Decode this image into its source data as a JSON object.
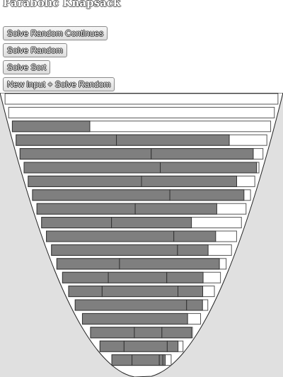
{
  "title": "Parabolic Knapsack",
  "buttons": [
    {
      "id": "solve_random_continues",
      "label": "Solve Random Continues"
    },
    {
      "id": "solve_random",
      "label": "Solve Random"
    },
    {
      "id": "solve_sort",
      "label": "Solve Sort"
    },
    {
      "id": "new_input_solve_random",
      "label": "New Input + Solve Random"
    }
  ],
  "colors": {
    "background": "#e0e0e0",
    "knapsack_fill": "#ffffff",
    "item_fill": "#7f7f7f",
    "row_border": "#555555"
  },
  "rows": [
    {
      "items": [],
      "fill": 0
    },
    {
      "items": [],
      "fill": 0
    },
    {
      "items": [
        0.3
      ],
      "fill": 0.3
    },
    {
      "items": [
        0.4,
        0.45
      ],
      "fill": 0.85
    },
    {
      "items": [
        0.54,
        0.42
      ],
      "fill": 0.96
    },
    {
      "items": [
        0.58,
        0.41
      ],
      "fill": 0.99
    },
    {
      "items": [
        0.5,
        0.42
      ],
      "fill": 0.92
    },
    {
      "items": [
        0.63,
        0.34
      ],
      "fill": 0.97
    },
    {
      "items": [
        0.47,
        0.39
      ],
      "fill": 0.86
    },
    {
      "items": [
        0.35,
        0.4
      ],
      "fill": 0.75
    },
    {
      "items": [
        0.67,
        0.22
      ],
      "fill": 0.89
    },
    {
      "items": [
        0.7,
        0.17
      ],
      "fill": 0.87
    },
    {
      "items": [
        0.37,
        0.59
      ],
      "fill": 0.96
    },
    {
      "items": [
        0.29,
        0.37,
        0.23
      ],
      "fill": 0.89
    },
    {
      "items": [
        0.23,
        0.52,
        0.17
      ],
      "fill": 0.92
    },
    {
      "items": [
        0.84,
        0.12
      ],
      "fill": 0.96
    },
    {
      "items": [
        0.89
      ],
      "fill": 0.89
    },
    {
      "items": [
        0.43,
        0.27,
        0.29
      ],
      "fill": 0.99
    },
    {
      "items": [
        0.29,
        0.52,
        0.13
      ],
      "fill": 0.94
    },
    {
      "items": [
        0.34,
        0.46,
        0.06,
        0.04
      ],
      "fill": 0.9
    }
  ]
}
